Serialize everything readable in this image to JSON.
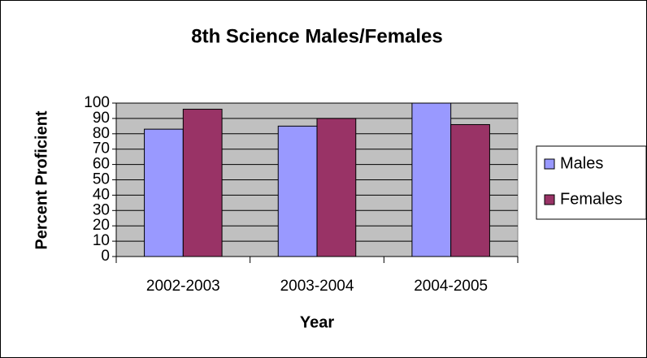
{
  "chart_data": {
    "type": "bar",
    "title": "8th Science Males/Females",
    "x_label": "Year",
    "y_label": "Percent Proficient",
    "categories": [
      "2002-2003",
      "2003-2004",
      "2004-2005"
    ],
    "series": [
      {
        "name": "Males",
        "color": "#9999ff",
        "values": [
          83,
          85,
          100
        ]
      },
      {
        "name": "Females",
        "color": "#993366",
        "values": [
          96,
          90,
          86
        ]
      }
    ],
    "ylim": [
      0,
      100
    ],
    "yticks": [
      0,
      10,
      20,
      30,
      40,
      50,
      60,
      70,
      80,
      90,
      100
    ],
    "grid": true,
    "legend": "right"
  }
}
